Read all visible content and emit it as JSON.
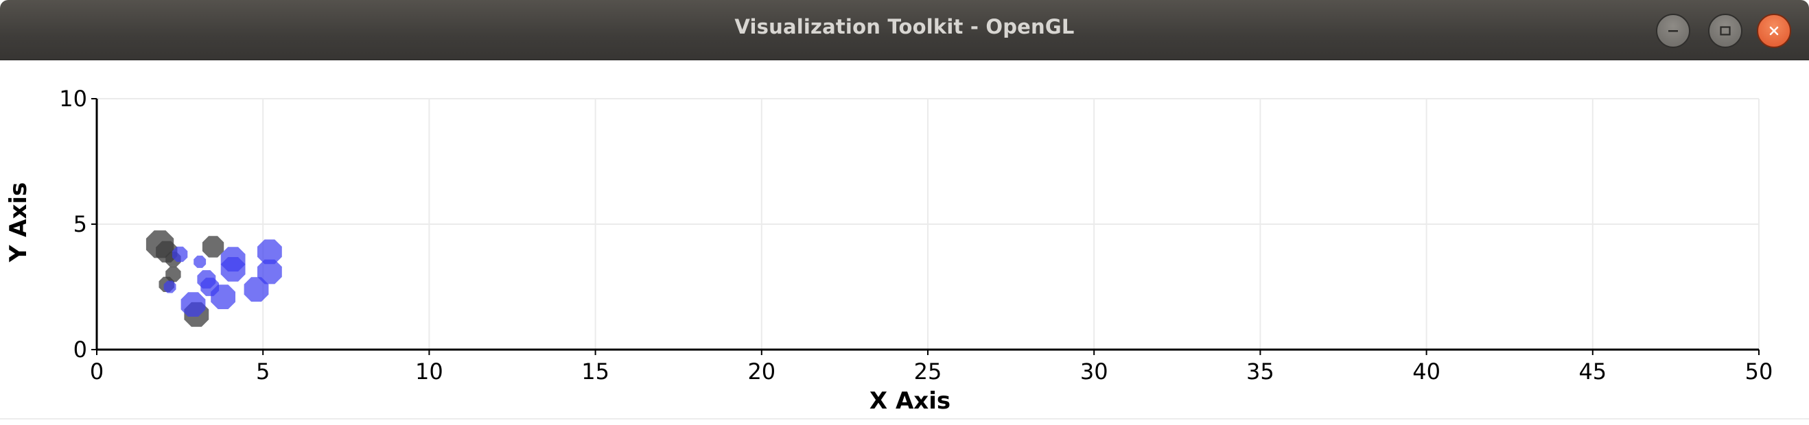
{
  "window": {
    "title": "Visualization Toolkit - OpenGL",
    "buttons": [
      {
        "name": "minimize",
        "icon": "minimize-icon"
      },
      {
        "name": "maximize",
        "icon": "maximize-icon"
      },
      {
        "name": "close",
        "icon": "close-icon"
      }
    ]
  },
  "colors": {
    "titlebar": "#3f3d3a",
    "gray_series": "#3c3c3c",
    "blue_series": "#3c3cf0",
    "axis": "#000000",
    "grid": "#ebebeb"
  },
  "chart_data": {
    "type": "scatter",
    "xlabel": "X Axis",
    "ylabel": "Y Axis",
    "xlim": [
      0,
      50
    ],
    "ylim": [
      0,
      10
    ],
    "xticks": [
      0,
      5,
      10,
      15,
      20,
      25,
      30,
      35,
      40,
      45,
      50
    ],
    "yticks": [
      0,
      5,
      10
    ],
    "grid": true,
    "marker": "octagon",
    "series": [
      {
        "color": "#3c3c3c",
        "opacity": 0.75,
        "points": [
          {
            "x": 1.9,
            "y": 4.2,
            "size": 0.9
          },
          {
            "x": 2.1,
            "y": 3.9,
            "size": 0.7
          },
          {
            "x": 2.3,
            "y": 3.6,
            "size": 0.5
          },
          {
            "x": 2.3,
            "y": 3.0,
            "size": 0.5
          },
          {
            "x": 2.1,
            "y": 2.6,
            "size": 0.5
          },
          {
            "x": 3.5,
            "y": 4.1,
            "size": 0.7
          },
          {
            "x": 3.0,
            "y": 1.4,
            "size": 0.8
          }
        ]
      },
      {
        "color": "#3c3cf0",
        "opacity": 0.7,
        "points": [
          {
            "x": 2.5,
            "y": 3.8,
            "size": 0.5
          },
          {
            "x": 3.1,
            "y": 3.5,
            "size": 0.4
          },
          {
            "x": 3.3,
            "y": 2.8,
            "size": 0.6
          },
          {
            "x": 3.4,
            "y": 2.5,
            "size": 0.6
          },
          {
            "x": 4.1,
            "y": 3.6,
            "size": 0.8
          },
          {
            "x": 4.1,
            "y": 3.2,
            "size": 0.8
          },
          {
            "x": 3.8,
            "y": 2.1,
            "size": 0.8
          },
          {
            "x": 4.8,
            "y": 2.4,
            "size": 0.8
          },
          {
            "x": 5.2,
            "y": 3.9,
            "size": 0.8
          },
          {
            "x": 5.2,
            "y": 3.1,
            "size": 0.8
          },
          {
            "x": 2.9,
            "y": 1.8,
            "size": 0.8
          },
          {
            "x": 2.2,
            "y": 2.5,
            "size": 0.4
          }
        ]
      }
    ]
  }
}
